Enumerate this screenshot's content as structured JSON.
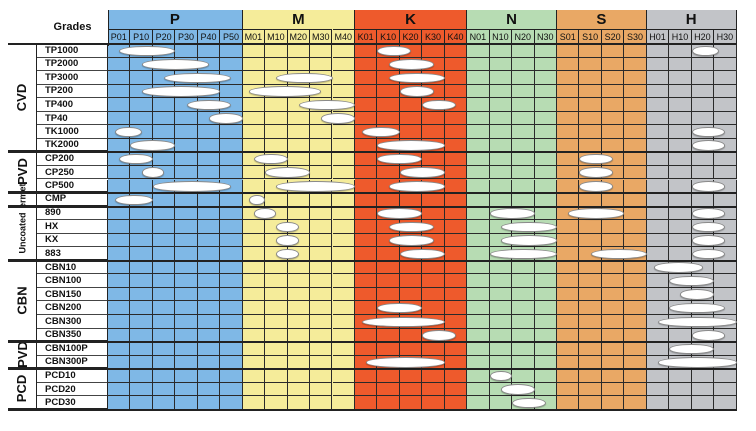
{
  "table": {
    "header_label": "Grades",
    "groups": [
      {
        "letter": "P",
        "color": "#7fb8e6",
        "columns": [
          "P01",
          "P10",
          "P20",
          "P30",
          "P40",
          "P50"
        ]
      },
      {
        "letter": "M",
        "color": "#f5ec9a",
        "columns": [
          "M01",
          "M10",
          "M20",
          "M30",
          "M40"
        ]
      },
      {
        "letter": "K",
        "color": "#ee5a2c",
        "columns": [
          "K01",
          "K10",
          "K20",
          "K30",
          "K40"
        ]
      },
      {
        "letter": "N",
        "color": "#b7dcb3",
        "columns": [
          "N01",
          "N10",
          "N20",
          "N30"
        ]
      },
      {
        "letter": "S",
        "color": "#e9a865",
        "columns": [
          "S01",
          "S10",
          "S20",
          "S30"
        ]
      },
      {
        "letter": "H",
        "color": "#c2c4c8",
        "columns": [
          "H01",
          "H10",
          "H20",
          "H30"
        ]
      }
    ],
    "row_groups": [
      {
        "label": "CVD",
        "rows": [
          "TP1000",
          "TP2000",
          "TP3000",
          "TP200",
          "TP400",
          "TP40",
          "TK1000",
          "TK2000"
        ]
      },
      {
        "label": "PVD",
        "rows": [
          "CP200",
          "CP250",
          "CP500"
        ]
      },
      {
        "label": "Cermet",
        "rows": [
          "CMP"
        ]
      },
      {
        "label": "Uncoated",
        "rows": [
          "890",
          "HX",
          "KX",
          "883"
        ]
      },
      {
        "label": "CBN",
        "rows": [
          "CBN10",
          "CBN100",
          "CBN150",
          "CBN200",
          "CBN300",
          "CBN350"
        ]
      },
      {
        "label": "PVD",
        "rows": [
          "CBN100P",
          "CBN300P"
        ]
      },
      {
        "label": "PCD",
        "rows": [
          "PCD10",
          "PCD20",
          "PCD30"
        ]
      }
    ],
    "ranges": {
      "TP1000": {
        "P": [
          0.5,
          3.0
        ],
        "K": [
          1.0,
          2.5
        ],
        "H": [
          2.0,
          3.2
        ]
      },
      "TP2000": {
        "P": [
          1.5,
          4.5
        ],
        "K": [
          1.5,
          3.5
        ]
      },
      "TP3000": {
        "P": [
          2.5,
          5.5
        ],
        "M": [
          1.5,
          4.0
        ],
        "K": [
          1.5,
          4.0
        ]
      },
      "TP200": {
        "P": [
          1.5,
          5.0
        ],
        "M": [
          0.3,
          3.5
        ],
        "K": [
          2.0,
          3.5
        ]
      },
      "TP400": {
        "P": [
          3.5,
          5.5
        ],
        "M": [
          2.5,
          5.0
        ],
        "K": [
          3.0,
          4.5
        ]
      },
      "TP40": {
        "P": [
          4.5,
          6.0
        ],
        "M": [
          3.5,
          5.0
        ]
      },
      "TK1000": {
        "P": [
          0.3,
          1.5
        ],
        "K": [
          0.3,
          2.0
        ],
        "H": [
          2.0,
          3.5
        ]
      },
      "TK2000": {
        "P": [
          1.0,
          3.0
        ],
        "K": [
          1.0,
          4.0
        ],
        "H": [
          2.0,
          3.5
        ]
      },
      "CP200": {
        "P": [
          0.5,
          2.0
        ],
        "M": [
          0.5,
          2.0
        ],
        "K": [
          1.0,
          3.0
        ],
        "S": [
          1.0,
          2.5
        ]
      },
      "CP250": {
        "P": [
          1.5,
          2.5
        ],
        "M": [
          1.0,
          3.0
        ],
        "K": [
          2.0,
          4.0
        ],
        "S": [
          1.0,
          2.5
        ]
      },
      "CP500": {
        "P": [
          2.0,
          5.5
        ],
        "M": [
          1.5,
          5.0
        ],
        "K": [
          1.5,
          4.0
        ],
        "S": [
          1.0,
          2.5
        ],
        "H": [
          2.0,
          3.5
        ]
      },
      "CMP": {
        "P": [
          0.3,
          2.0
        ],
        "M": [
          0.3,
          1.0
        ]
      },
      "890": {
        "M": [
          0.5,
          1.5
        ],
        "K": [
          1.0,
          3.0
        ],
        "N": [
          1.0,
          3.0
        ],
        "S": [
          0.5,
          3.0
        ],
        "H": [
          2.0,
          3.5
        ]
      },
      "HX": {
        "M": [
          1.5,
          2.5
        ],
        "K": [
          1.5,
          3.5
        ],
        "N": [
          1.5,
          4.0
        ],
        "H": [
          2.0,
          3.5
        ]
      },
      "KX": {
        "M": [
          1.5,
          2.5
        ],
        "K": [
          1.5,
          3.5
        ],
        "N": [
          1.5,
          4.0
        ],
        "H": [
          2.0,
          3.5
        ]
      },
      "883": {
        "M": [
          1.5,
          2.5
        ],
        "K": [
          2.0,
          4.0
        ],
        "N": [
          1.0,
          4.0
        ],
        "S": [
          1.5,
          4.0
        ],
        "H": [
          2.0,
          3.5
        ]
      },
      "CBN10": {
        "H": [
          0.3,
          2.5
        ]
      },
      "CBN100": {
        "H": [
          1.0,
          3.0
        ]
      },
      "CBN150": {
        "H": [
          1.5,
          3.0
        ]
      },
      "CBN200": {
        "K": [
          1.0,
          3.0
        ],
        "H": [
          1.0,
          3.5
        ]
      },
      "CBN300": {
        "K": [
          0.3,
          4.0
        ],
        "H": [
          0.5,
          4.0
        ]
      },
      "CBN350": {
        "K": [
          3.0,
          4.5
        ],
        "H": [
          2.0,
          3.5
        ]
      },
      "CBN100P": {
        "H": [
          1.0,
          3.0
        ]
      },
      "CBN300P": {
        "K": [
          0.5,
          4.0
        ],
        "H": [
          0.5,
          4.0
        ]
      },
      "PCD10": {
        "N": [
          1.0,
          2.0
        ]
      },
      "PCD20": {
        "N": [
          1.5,
          3.0
        ]
      },
      "PCD30": {
        "N": [
          2.0,
          3.5
        ]
      }
    }
  }
}
